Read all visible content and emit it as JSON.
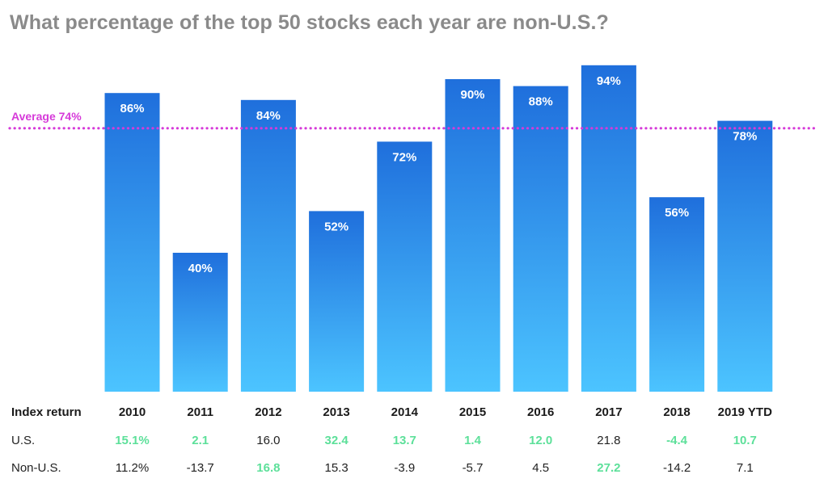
{
  "title": "What percentage of the top 50 stocks each year are non-U.S.?",
  "chart_data": {
    "type": "bar",
    "title": "What percentage of the top 50 stocks each year are non-U.S.?",
    "categories": [
      "2010",
      "2011",
      "2012",
      "2013",
      "2014",
      "2015",
      "2016",
      "2017",
      "2018",
      "2019 YTD"
    ],
    "values": [
      86,
      40,
      84,
      52,
      72,
      90,
      88,
      94,
      56,
      78
    ],
    "data_labels": [
      "86%",
      "40%",
      "84%",
      "52%",
      "72%",
      "90%",
      "88%",
      "94%",
      "56%",
      "78%"
    ],
    "unit": "%",
    "ylim": [
      0,
      100
    ],
    "grid": false,
    "reference_line": {
      "label": "Average 74%",
      "value": 74
    },
    "colors": {
      "bar_top": "#1f6fdc",
      "bar_bottom": "#4cc4ff",
      "average_line": "#d63ad9",
      "label": "#ffffff"
    }
  },
  "table": {
    "header_label": "Index return",
    "rows": [
      {
        "label": "U.S.",
        "values": [
          "15.1%",
          "2.1",
          "16.0",
          "32.4",
          "13.7",
          "1.4",
          "12.0",
          "21.8",
          "-4.4",
          "10.7"
        ],
        "highlight": [
          true,
          true,
          false,
          true,
          true,
          true,
          true,
          false,
          true,
          true
        ]
      },
      {
        "label": "Non-U.S.",
        "values": [
          "11.2%",
          "-13.7",
          "16.8",
          "15.3",
          "-3.9",
          "-5.7",
          "4.5",
          "27.2",
          "-14.2",
          "7.1"
        ],
        "highlight": [
          false,
          false,
          true,
          false,
          false,
          false,
          false,
          true,
          false,
          false
        ]
      }
    ],
    "highlight_color": "#5de09a"
  }
}
